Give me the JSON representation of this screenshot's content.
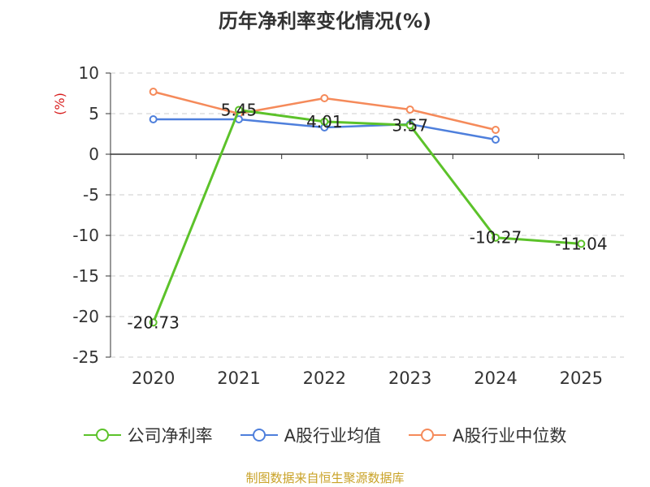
{
  "title": "历年净利率变化情况(%)",
  "source": "制图数据来自恒生聚源数据库",
  "chart_data": {
    "type": "line",
    "title": "历年净利率变化情况(%)",
    "ylabel": "(%)",
    "xlabel": "",
    "categories": [
      "2020",
      "2021",
      "2022",
      "2023",
      "2024",
      "2025"
    ],
    "ylim": [
      -25,
      10
    ],
    "yticks": [
      10,
      5,
      0,
      -5,
      -10,
      -15,
      -20,
      -25
    ],
    "ytick_labels": [
      "10",
      "5",
      "0",
      "-5",
      "-10",
      "-15",
      "-20",
      "-25"
    ],
    "grid": true,
    "legend_position": "bottom",
    "series": [
      {
        "name": "公司净利率",
        "color": "#5cc22a",
        "values": [
          -20.73,
          5.45,
          4.01,
          3.57,
          -10.27,
          -11.04
        ],
        "labels": [
          "-20.73",
          "5.45",
          "4.01",
          "3.57",
          "-10.27",
          "-11.04"
        ]
      },
      {
        "name": "A股行业均值",
        "color": "#4e7fdc",
        "values": [
          4.3,
          4.3,
          3.3,
          3.7,
          1.8,
          null
        ]
      },
      {
        "name": "A股行业中位数",
        "color": "#f58a5a",
        "values": [
          7.7,
          5.0,
          6.9,
          5.5,
          3.0,
          null
        ]
      }
    ]
  },
  "colors": {
    "ylabel": "#d81e1e",
    "source": "#c9a227",
    "grid": "#cccccc",
    "axis": "#333333"
  }
}
